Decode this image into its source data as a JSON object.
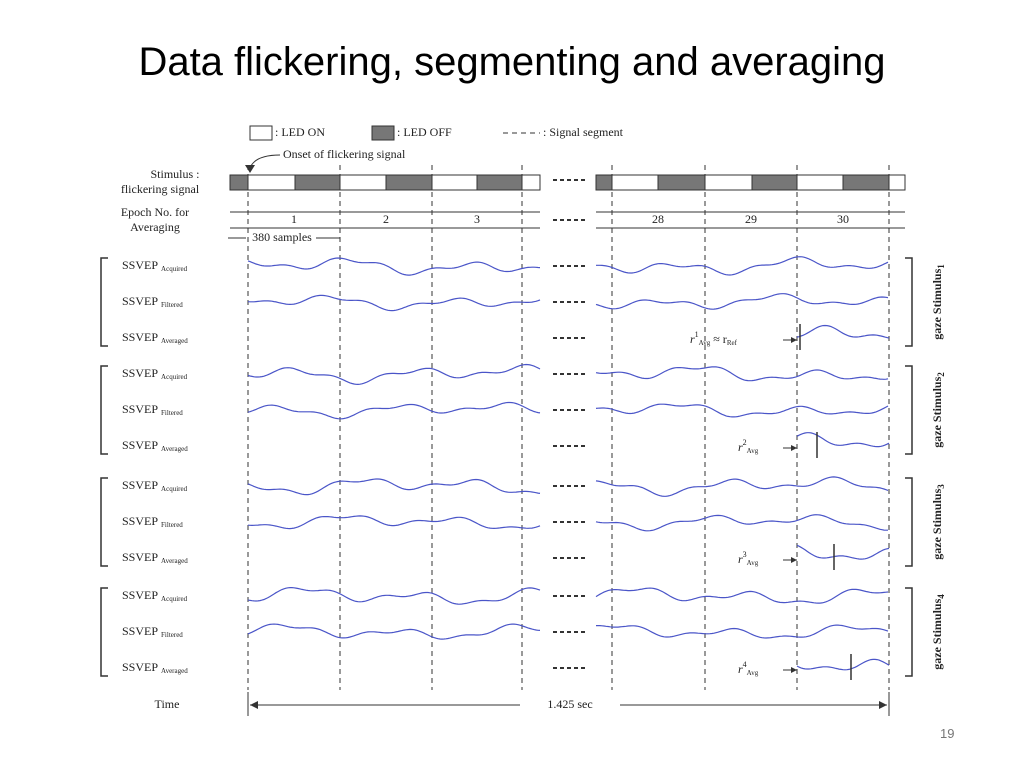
{
  "title": "Data flickering, segmenting and averaging",
  "legend": {
    "on": ": LED ON",
    "off": ": LED OFF",
    "segment": ": Signal segment"
  },
  "onset": "Onset of flickering signal",
  "stimulus_label": [
    "Stimulus :",
    "flickering signal"
  ],
  "epoch_label": [
    "Epoch No. for",
    "Averaging"
  ],
  "epochs": [
    "1",
    "2",
    "3",
    "28",
    "29",
    "30"
  ],
  "samples": "380 samples",
  "signal": "SSVEP",
  "row_types": [
    "Acquired",
    "Filtered",
    "Averaged"
  ],
  "groups": [
    {
      "label": "gaze Stimulus",
      "index": "1",
      "annotation": {
        "r": "r",
        "sup": "1",
        "sub": "Avg",
        "rest": "≈ r",
        "rest_sub": "Ref"
      }
    },
    {
      "label": "gaze Stimulus",
      "index": "2",
      "annotation": {
        "r": "r",
        "sup": "2",
        "sub": "Avg"
      }
    },
    {
      "label": "gaze Stimulus",
      "index": "3",
      "annotation": {
        "r": "r",
        "sup": "3",
        "sub": "Avg"
      }
    },
    {
      "label": "gaze Stimulus",
      "index": "4",
      "annotation": {
        "r": "r",
        "sup": "4",
        "sub": "Avg"
      }
    }
  ],
  "time_label": "Time",
  "duration": "1.425 sec",
  "page_number": "19"
}
